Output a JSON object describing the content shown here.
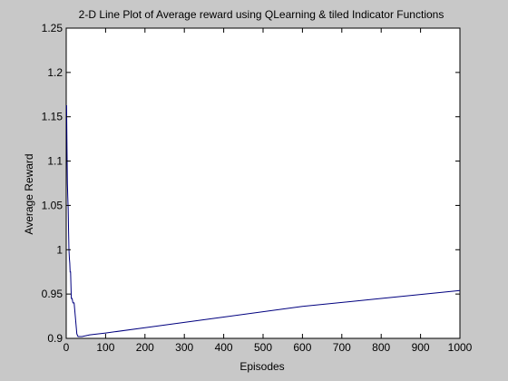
{
  "chart_data": {
    "type": "line",
    "title": "2-D Line Plot of Average reward using QLearning & tiled Indicator Functions",
    "xlabel": "Episodes",
    "ylabel": "Average Reward",
    "xlim": [
      0,
      1000
    ],
    "ylim": [
      0.9,
      1.25
    ],
    "grid": false,
    "legend": "none",
    "x_ticks": [
      0,
      100,
      200,
      300,
      400,
      500,
      600,
      700,
      800,
      900,
      1000
    ],
    "x_tick_labels": [
      "0",
      "100",
      "200",
      "300",
      "400",
      "500",
      "600",
      "700",
      "800",
      "900",
      "1000"
    ],
    "y_ticks": [
      0.9,
      0.95,
      1.0,
      1.05,
      1.1,
      1.15,
      1.2,
      1.25
    ],
    "y_tick_labels": [
      "0.9",
      "0.95",
      "1",
      "1.05",
      "1.1",
      "1.15",
      "1.2",
      "1.25"
    ],
    "series": [
      {
        "line_color": "#00007f",
        "x": [
          1,
          2,
          3,
          4,
          5,
          6,
          7,
          8,
          9,
          10,
          11,
          12,
          13,
          15,
          17,
          20,
          23,
          27,
          30,
          35,
          40,
          60,
          100,
          200,
          400,
          600,
          800,
          1000
        ],
        "y": [
          1.163,
          1.11,
          1.075,
          1.06,
          1.045,
          1.02,
          1.0,
          0.99,
          0.985,
          0.975,
          0.975,
          0.96,
          0.945,
          0.945,
          0.94,
          0.94,
          0.925,
          0.905,
          0.902,
          0.902,
          0.902,
          0.904,
          0.906,
          0.912,
          0.924,
          0.936,
          0.945,
          0.954
        ]
      }
    ]
  },
  "colors": {
    "figure_background": "#c8c8c8",
    "axes_background": "#ffffff",
    "axes_frame": "#000000"
  }
}
